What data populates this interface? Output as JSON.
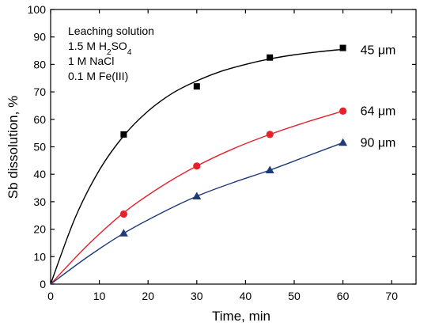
{
  "chart_data": {
    "type": "scatter",
    "xlabel": "Time, min",
    "ylabel": "Sb dissolution, %",
    "xlim": [
      0,
      75
    ],
    "ylim": [
      0,
      100
    ],
    "xticks": [
      0,
      10,
      20,
      30,
      40,
      50,
      60,
      70
    ],
    "yticks": [
      0,
      10,
      20,
      30,
      40,
      50,
      60,
      70,
      80,
      90,
      100
    ],
    "grid": false,
    "annotation_lines": [
      {
        "prefix": "Leaching solution",
        "sub": "",
        "suffix": ""
      },
      {
        "prefix": "1.5 M H",
        "sub": "2",
        "suffix": "SO",
        "sub2": "4"
      },
      {
        "prefix": "1 M NaCl",
        "sub": "",
        "suffix": ""
      },
      {
        "prefix": "0.1 M Fe(III)",
        "sub": "",
        "suffix": ""
      }
    ],
    "series": [
      {
        "name": "45 μm",
        "color": "#000000",
        "marker": "square",
        "x": [
          15,
          30,
          45,
          60
        ],
        "y": [
          54.5,
          72,
          82.5,
          86
        ],
        "curve": [
          [
            0,
            0
          ],
          [
            5,
            24
          ],
          [
            10,
            41.5
          ],
          [
            15,
            54
          ],
          [
            20,
            63
          ],
          [
            25,
            69.5
          ],
          [
            30,
            74
          ],
          [
            35,
            77.5
          ],
          [
            40,
            80
          ],
          [
            45,
            82
          ],
          [
            50,
            83.5
          ],
          [
            55,
            84.6
          ],
          [
            60,
            85.5
          ]
        ]
      },
      {
        "name": "64 μm",
        "color": "#e8202a",
        "marker": "circle",
        "x": [
          15,
          30,
          45,
          60
        ],
        "y": [
          25.5,
          43,
          54.5,
          63
        ],
        "curve": [
          [
            0,
            0
          ],
          [
            7.5,
            14
          ],
          [
            15,
            26
          ],
          [
            22.5,
            35.3
          ],
          [
            30,
            43
          ],
          [
            37.5,
            49.3
          ],
          [
            45,
            54.5
          ],
          [
            52.5,
            59
          ],
          [
            60,
            63
          ]
        ]
      },
      {
        "name": "90 μm",
        "color": "#1f3a7a",
        "marker": "triangle",
        "x": [
          15,
          30,
          45,
          60
        ],
        "y": [
          18.5,
          32,
          41.5,
          51.5
        ],
        "curve": [
          [
            0,
            0
          ],
          [
            7.5,
            9.8
          ],
          [
            15,
            18.5
          ],
          [
            22.5,
            25.7
          ],
          [
            30,
            32
          ],
          [
            37.5,
            37
          ],
          [
            45,
            41.5
          ],
          [
            52.5,
            46.5
          ],
          [
            60,
            51.5
          ]
        ]
      }
    ]
  }
}
